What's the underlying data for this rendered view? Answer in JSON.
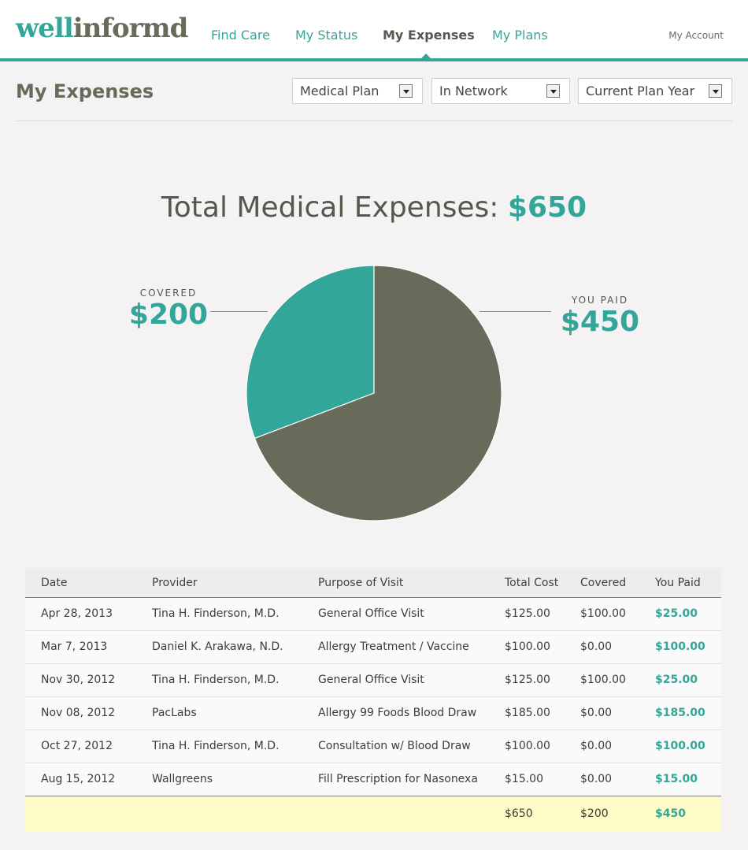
{
  "brand": {
    "part1": "well",
    "part2": "informd"
  },
  "nav": {
    "items": [
      {
        "label": "Find Care",
        "active": false
      },
      {
        "label": "My Status",
        "active": false
      },
      {
        "label": "My Expenses",
        "active": true
      },
      {
        "label": "My Plans",
        "active": false
      }
    ],
    "account": "My Account"
  },
  "page": {
    "title": "My Expenses",
    "filters": {
      "plan": "Medical Plan",
      "network": "In Network",
      "period": "Current Plan Year"
    }
  },
  "summary": {
    "title": "Total Medical Expenses:",
    "total": "$650",
    "covered_label": "COVERED",
    "covered_amount": "$200",
    "paid_label": "YOU PAID",
    "paid_amount": "$450"
  },
  "chart_data": {
    "type": "pie",
    "title": "Total Medical Expenses: $650",
    "slices": [
      {
        "label": "COVERED",
        "value": 200,
        "color": "#33a69a"
      },
      {
        "label": "YOU PAID",
        "value": 450,
        "color": "#696b5a"
      }
    ]
  },
  "table": {
    "headers": [
      "Date",
      "Provider",
      "Purpose of Visit",
      "Total Cost",
      "Covered",
      "You Paid"
    ],
    "rows": [
      [
        "Apr 28, 2013",
        "Tina H. Finderson, M.D.",
        "General Office Visit",
        "$125.00",
        "$100.00",
        "$25.00"
      ],
      [
        "Mar 7, 2013",
        "Daniel K. Arakawa, N.D.",
        "Allergy Treatment / Vaccine",
        "$100.00",
        "$0.00",
        "$100.00"
      ],
      [
        "Nov 30, 2012",
        "Tina H. Finderson, M.D.",
        "General Office Visit",
        "$125.00",
        "$100.00",
        "$25.00"
      ],
      [
        "Nov 08, 2012",
        "PacLabs",
        "Allergy 99 Foods Blood Draw",
        "$185.00",
        "$0.00",
        "$185.00"
      ],
      [
        "Oct 27, 2012",
        "Tina H. Finderson, M.D.",
        "Consultation w/ Blood Draw",
        "$100.00",
        "$0.00",
        "$100.00"
      ],
      [
        "Aug 15, 2012",
        "Wallgreens",
        "Fill Prescription for Nasonexa",
        "$15.00",
        "$0.00",
        "$15.00"
      ]
    ],
    "totals": {
      "total_cost": "$650",
      "covered": "$200",
      "you_paid": "$450"
    }
  },
  "colors": {
    "accent": "#33a69a",
    "dark": "#696b5a",
    "totals_bg": "#fdfbc6"
  }
}
